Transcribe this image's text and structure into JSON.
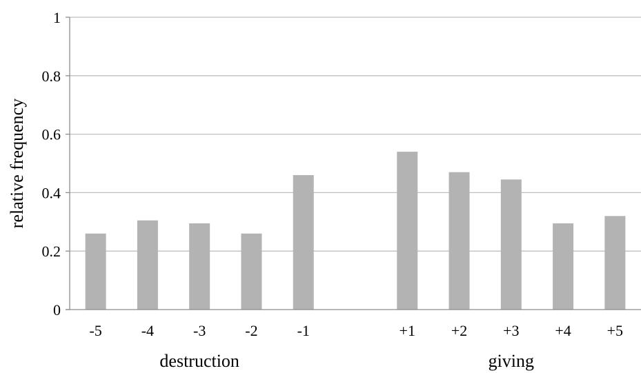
{
  "chart_data": {
    "type": "bar",
    "categories": [
      "-5",
      "-4",
      "-3",
      "-2",
      "-1",
      "",
      "+1",
      "+2",
      "+3",
      "+4",
      "+5"
    ],
    "values": [
      0.26,
      0.305,
      0.295,
      0.26,
      0.46,
      null,
      0.54,
      0.47,
      0.445,
      0.295,
      0.32
    ],
    "group_labels": [
      "destruction",
      "giving"
    ],
    "groups": [
      {
        "label": "destruction",
        "categories": [
          "-5",
          "-4",
          "-3",
          "-2",
          "-1"
        ]
      },
      {
        "label": "giving",
        "categories": [
          "+1",
          "+2",
          "+3",
          "+4",
          "+5"
        ]
      }
    ],
    "title": "",
    "xlabel": "",
    "ylabel": "relative frequency",
    "ylim": [
      0,
      1
    ],
    "yticks": [
      0,
      0.2,
      0.4,
      0.6,
      0.8,
      1
    ],
    "ytick_labels": [
      "0",
      "0.2",
      "0.4",
      "0.6",
      "0.8",
      "1"
    ],
    "grid": true,
    "legend": "none",
    "colors": {
      "bar": "#b3b3b3",
      "grid": "#bfbfbf",
      "axis": "#8c8c8c",
      "text": "#000000"
    }
  }
}
